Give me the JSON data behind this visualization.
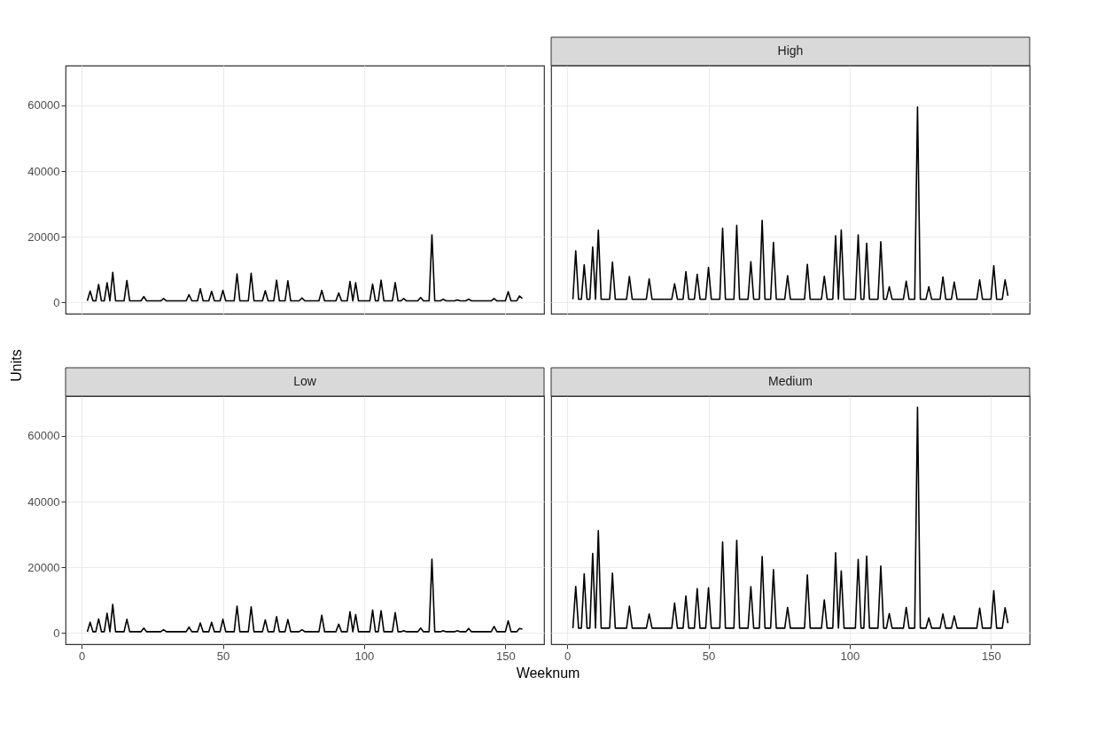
{
  "chart_data": [
    {
      "type": "line",
      "x": [
        2,
        3,
        4,
        5,
        6,
        7,
        8,
        9,
        10,
        11,
        12,
        15,
        16,
        17,
        21,
        22,
        23,
        28,
        29,
        30,
        37,
        38,
        39,
        41,
        42,
        43,
        45,
        46,
        47,
        49,
        50,
        51,
        54,
        55,
        56,
        59,
        60,
        61,
        64,
        65,
        66,
        68,
        69,
        70,
        72,
        73,
        74,
        77,
        78,
        79,
        84,
        85,
        86,
        90,
        91,
        92,
        94,
        95,
        96,
        97,
        98,
        102,
        103,
        104,
        105,
        106,
        107,
        110,
        111,
        112,
        113,
        114,
        115,
        119,
        120,
        121,
        123,
        124,
        125,
        127,
        128,
        129,
        132,
        133,
        134,
        136,
        137,
        138,
        145,
        146,
        147,
        150,
        151,
        152,
        154,
        155,
        156
      ],
      "series": [
        {
          "color": "#000000",
          "values": [
            500,
            3500,
            500,
            500,
            5500,
            500,
            500,
            6000,
            500,
            9200,
            500,
            500,
            6700,
            500,
            500,
            1800,
            500,
            500,
            1200,
            500,
            500,
            2400,
            500,
            500,
            4200,
            500,
            500,
            3400,
            500,
            500,
            3700,
            500,
            500,
            8700,
            500,
            500,
            8900,
            500,
            500,
            3600,
            500,
            500,
            6800,
            500,
            500,
            6600,
            500,
            500,
            1400,
            500,
            500,
            3700,
            500,
            500,
            2900,
            500,
            500,
            6400,
            500,
            6000,
            500,
            500,
            5600,
            500,
            500,
            6800,
            500,
            500,
            6100,
            500,
            500,
            1200,
            500,
            500,
            1500,
            500,
            500,
            20600,
            500,
            500,
            1000,
            500,
            500,
            800,
            500,
            500,
            1000,
            500,
            500,
            1200,
            500,
            500,
            3300,
            500,
            500,
            2000,
            1200
          ]
        }
      ],
      "xlim": [
        -5.7,
        163.7
      ],
      "ylim": [
        -3400,
        72100
      ],
      "xticks": [
        0,
        50,
        100,
        150
      ],
      "yticks": [
        0,
        20000,
        40000,
        60000
      ],
      "grid": true,
      "tick_labels": "y"
    },
    {
      "type": "line",
      "title": "High",
      "x": [
        2,
        3,
        4,
        5,
        6,
        7,
        8,
        9,
        10,
        11,
        12,
        15,
        16,
        17,
        21,
        22,
        23,
        28,
        29,
        30,
        37,
        38,
        39,
        41,
        42,
        43,
        45,
        46,
        47,
        49,
        50,
        51,
        54,
        55,
        56,
        59,
        60,
        61,
        64,
        65,
        66,
        68,
        69,
        70,
        72,
        73,
        74,
        77,
        78,
        79,
        84,
        85,
        86,
        90,
        91,
        92,
        94,
        95,
        96,
        97,
        98,
        102,
        103,
        104,
        105,
        106,
        107,
        110,
        111,
        112,
        113,
        114,
        115,
        119,
        120,
        121,
        123,
        124,
        125,
        127,
        128,
        129,
        132,
        133,
        134,
        136,
        137,
        138,
        145,
        146,
        147,
        150,
        151,
        152,
        154,
        155,
        156
      ],
      "series": [
        {
          "color": "#000000",
          "values": [
            1000,
            15700,
            1000,
            1000,
            11500,
            1000,
            1000,
            16900,
            1000,
            22000,
            1000,
            1000,
            12300,
            1000,
            1000,
            7900,
            1000,
            1000,
            7200,
            1000,
            1000,
            5700,
            1000,
            1000,
            9400,
            1000,
            1000,
            8600,
            1000,
            1000,
            10700,
            1000,
            1000,
            22600,
            1000,
            1000,
            23500,
            1000,
            1000,
            12400,
            1000,
            1000,
            25000,
            1000,
            1000,
            18300,
            1000,
            1000,
            8200,
            1000,
            1000,
            11600,
            1000,
            1000,
            8000,
            1000,
            1000,
            20300,
            1000,
            22100,
            1000,
            1000,
            20600,
            1000,
            1000,
            18000,
            1000,
            1000,
            18500,
            1000,
            1000,
            4800,
            1000,
            1000,
            6500,
            1000,
            1000,
            59500,
            1000,
            1000,
            4800,
            1000,
            1000,
            7800,
            1000,
            1000,
            6200,
            1000,
            1000,
            6900,
            1000,
            1000,
            11200,
            1000,
            1000,
            6900,
            2000
          ]
        }
      ],
      "xlim": [
        -5.7,
        163.7
      ],
      "ylim": [
        -3400,
        72100
      ],
      "xticks": [
        0,
        50,
        100,
        150
      ],
      "yticks": [
        0,
        20000,
        40000,
        60000
      ],
      "grid": true,
      "tick_labels": false
    },
    {
      "type": "line",
      "title": "Low",
      "xlabel": "Weeknum",
      "ylabel": "Units",
      "x": [
        2,
        3,
        4,
        5,
        6,
        7,
        8,
        9,
        10,
        11,
        12,
        15,
        16,
        17,
        21,
        22,
        23,
        28,
        29,
        30,
        37,
        38,
        39,
        41,
        42,
        43,
        45,
        46,
        47,
        49,
        50,
        51,
        54,
        55,
        56,
        59,
        60,
        61,
        64,
        65,
        66,
        68,
        69,
        70,
        72,
        73,
        74,
        77,
        78,
        79,
        84,
        85,
        86,
        90,
        91,
        92,
        94,
        95,
        96,
        97,
        98,
        102,
        103,
        104,
        105,
        106,
        107,
        110,
        111,
        112,
        113,
        114,
        115,
        119,
        120,
        121,
        123,
        124,
        125,
        127,
        128,
        129,
        132,
        133,
        134,
        136,
        137,
        138,
        145,
        146,
        147,
        150,
        151,
        152,
        154,
        155,
        156
      ],
      "series": [
        {
          "color": "#000000",
          "values": [
            400,
            3300,
            400,
            400,
            4300,
            400,
            400,
            6000,
            400,
            8700,
            400,
            400,
            4200,
            400,
            400,
            1500,
            400,
            400,
            1000,
            400,
            400,
            1800,
            400,
            400,
            3100,
            400,
            400,
            3300,
            400,
            400,
            4200,
            400,
            400,
            8200,
            400,
            400,
            8000,
            400,
            400,
            4000,
            400,
            400,
            5000,
            400,
            400,
            4100,
            400,
            400,
            1000,
            400,
            400,
            5400,
            400,
            400,
            2700,
            400,
            400,
            6500,
            400,
            5600,
            400,
            400,
            7000,
            400,
            400,
            6800,
            400,
            400,
            6200,
            400,
            400,
            700,
            400,
            400,
            1500,
            400,
            400,
            22500,
            400,
            400,
            700,
            400,
            400,
            700,
            400,
            400,
            1400,
            400,
            400,
            2000,
            400,
            400,
            3700,
            400,
            400,
            1400,
            1200
          ]
        }
      ],
      "xlim": [
        -5.7,
        163.7
      ],
      "ylim": [
        -3400,
        72100
      ],
      "xticks": [
        0,
        50,
        100,
        150
      ],
      "yticks": [
        0,
        20000,
        40000,
        60000
      ],
      "grid": true
    },
    {
      "type": "line",
      "title": "Medium",
      "x": [
        2,
        3,
        4,
        5,
        6,
        7,
        8,
        9,
        10,
        11,
        12,
        15,
        16,
        17,
        21,
        22,
        23,
        28,
        29,
        30,
        37,
        38,
        39,
        41,
        42,
        43,
        45,
        46,
        47,
        49,
        50,
        51,
        54,
        55,
        56,
        59,
        60,
        61,
        64,
        65,
        66,
        68,
        69,
        70,
        72,
        73,
        74,
        77,
        78,
        79,
        84,
        85,
        86,
        90,
        91,
        92,
        94,
        95,
        96,
        97,
        98,
        102,
        103,
        104,
        105,
        106,
        107,
        110,
        111,
        112,
        113,
        114,
        115,
        119,
        120,
        121,
        123,
        124,
        125,
        127,
        128,
        129,
        132,
        133,
        134,
        136,
        137,
        138,
        145,
        146,
        147,
        150,
        151,
        152,
        154,
        155,
        156
      ],
      "series": [
        {
          "color": "#000000",
          "values": [
            1500,
            14200,
            1500,
            1500,
            18000,
            1500,
            1500,
            24200,
            1500,
            31200,
            1500,
            1500,
            18200,
            1500,
            1500,
            8200,
            1500,
            1500,
            5800,
            1500,
            1500,
            9100,
            1500,
            1500,
            11300,
            1500,
            1500,
            13500,
            1500,
            1500,
            13800,
            1500,
            1500,
            27700,
            1500,
            1500,
            28200,
            1500,
            1500,
            14100,
            1500,
            1500,
            23300,
            1500,
            1500,
            19300,
            1500,
            1500,
            7800,
            1500,
            1500,
            17700,
            1500,
            1500,
            10100,
            1500,
            1500,
            24400,
            1500,
            18900,
            1500,
            1500,
            22400,
            1500,
            1500,
            23400,
            1500,
            1500,
            20400,
            1500,
            1500,
            5900,
            1500,
            1500,
            7800,
            1500,
            1500,
            68700,
            1500,
            1500,
            4600,
            1500,
            1500,
            5800,
            1500,
            1500,
            5200,
            1500,
            1500,
            7600,
            1500,
            1500,
            12900,
            1500,
            1500,
            7700,
            3000
          ]
        }
      ],
      "xlim": [
        -5.7,
        163.7
      ],
      "ylim": [
        -3400,
        72100
      ],
      "xticks": [
        0,
        50,
        100,
        150
      ],
      "yticks": [
        0,
        20000,
        40000,
        60000
      ],
      "grid": true,
      "tick_labels": "x"
    }
  ]
}
